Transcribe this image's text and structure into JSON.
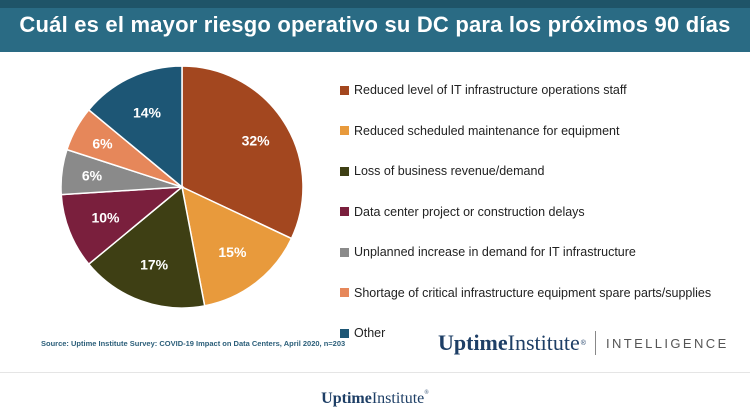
{
  "title": "Cuál es el mayor riesgo operativo su DC para los próximos 90 días",
  "source": "Source: Uptime Institute Survey: COVID-19 Impact on Data Centers, April 2020, n=203",
  "logo": {
    "uptime": "Uptime",
    "institute": "Institute",
    "reg": "®",
    "intelligence": "INTELLIGENCE"
  },
  "footer_logo": {
    "uptime": "Uptime",
    "institute": "Institute",
    "reg": "®"
  },
  "chart_data": {
    "type": "pie",
    "categories": [
      "Reduced level of IT infrastructure operations staff",
      "Reduced scheduled maintenance for equipment",
      "Loss of business revenue/demand",
      "Data center project or construction delays",
      "Unplanned increase in demand for IT infrastructure",
      "Shortage of critical infrastructure equipment spare parts/supplies",
      "Other"
    ],
    "values": [
      32,
      15,
      17,
      10,
      6,
      6,
      14
    ],
    "labels": [
      "32%",
      "15%",
      "17%",
      "10%",
      "6%",
      "6%",
      "14%"
    ],
    "colors": [
      "#a3471f",
      "#e89a3c",
      "#3e3f14",
      "#7a1f3d",
      "#8a8a8a",
      "#e6875a",
      "#1d5675"
    ],
    "legend_position": "right"
  }
}
